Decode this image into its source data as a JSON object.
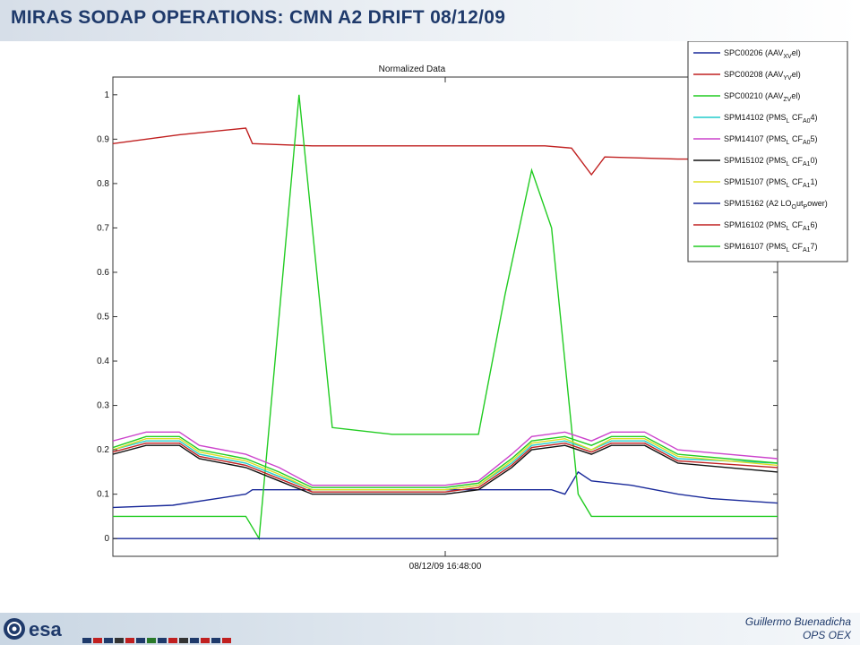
{
  "slide": {
    "title": "MIRAS SODAP OPERATIONS: CMN A2 DRIFT 08/12/09",
    "author_line1": "Guillermo Buenadicha",
    "author_line2": "OPS OEX",
    "logo_text": "esa"
  },
  "chart_data": {
    "type": "line",
    "title": "Normalized Data",
    "xlabel": "08/12/09 16:48:00",
    "ylabel": "",
    "xlim": [
      0,
      1
    ],
    "ylim": [
      -0.04,
      1.04
    ],
    "yticks": [
      "0",
      "0.1",
      "0.2",
      "0.3",
      "0.4",
      "0.5",
      "0.6",
      "0.7",
      "0.8",
      "0.9",
      "1"
    ],
    "grid": false,
    "legend_position": "top-right",
    "series": [
      {
        "name": "SPC00206 (AAV",
        "sub": "XV",
        "tail": "el)",
        "color": "#1a2a9a",
        "points": [
          [
            0,
            0.07
          ],
          [
            0.09,
            0.075
          ],
          [
            0.2,
            0.1
          ],
          [
            0.21,
            0.11
          ],
          [
            0.3,
            0.11
          ],
          [
            0.4,
            0.11
          ],
          [
            0.55,
            0.11
          ],
          [
            0.66,
            0.11
          ],
          [
            0.68,
            0.1
          ],
          [
            0.7,
            0.15
          ],
          [
            0.72,
            0.13
          ],
          [
            0.78,
            0.12
          ],
          [
            0.85,
            0.1
          ],
          [
            0.9,
            0.09
          ],
          [
            1,
            0.08
          ]
        ]
      },
      {
        "name": "SPC00208 (AAV",
        "sub": "YV",
        "tail": "el)",
        "color": "#c02020",
        "points": [
          [
            0,
            0.89
          ],
          [
            0.1,
            0.91
          ],
          [
            0.2,
            0.925
          ],
          [
            0.21,
            0.89
          ],
          [
            0.3,
            0.885
          ],
          [
            0.5,
            0.885
          ],
          [
            0.65,
            0.885
          ],
          [
            0.69,
            0.88
          ],
          [
            0.7,
            0.86
          ],
          [
            0.72,
            0.82
          ],
          [
            0.74,
            0.86
          ],
          [
            0.85,
            0.855
          ],
          [
            1,
            0.855
          ]
        ]
      },
      {
        "name": "SPC00210 (AAV",
        "sub": "ZV",
        "tail": "el)",
        "color": "#22cc22",
        "points": [
          [
            0,
            0.05
          ],
          [
            0.2,
            0.05
          ],
          [
            0.22,
            0.0
          ],
          [
            0.28,
            1.0
          ],
          [
            0.33,
            0.25
          ],
          [
            0.42,
            0.235
          ],
          [
            0.5,
            0.235
          ],
          [
            0.55,
            0.235
          ],
          [
            0.59,
            0.55
          ],
          [
            0.63,
            0.83
          ],
          [
            0.66,
            0.7
          ],
          [
            0.7,
            0.1
          ],
          [
            0.72,
            0.05
          ],
          [
            1,
            0.05
          ]
        ]
      },
      {
        "name": "SPM14102 (PMS",
        "sub": "L",
        "tail": " CF",
        "sub2": "A0",
        "tail2": "4)",
        "color": "#22cccc",
        "points": [
          [
            0,
            0.2
          ],
          [
            0.05,
            0.22
          ],
          [
            0.1,
            0.22
          ],
          [
            0.13,
            0.19
          ],
          [
            0.2,
            0.17
          ],
          [
            0.25,
            0.14
          ],
          [
            0.3,
            0.11
          ],
          [
            0.5,
            0.11
          ],
          [
            0.55,
            0.12
          ],
          [
            0.6,
            0.17
          ],
          [
            0.63,
            0.21
          ],
          [
            0.68,
            0.22
          ],
          [
            0.72,
            0.2
          ],
          [
            0.75,
            0.22
          ],
          [
            0.8,
            0.22
          ],
          [
            0.85,
            0.18
          ],
          [
            1,
            0.17
          ]
        ]
      },
      {
        "name": "SPM14107 (PMS",
        "sub": "L",
        "tail": " CF",
        "sub2": "A0",
        "tail2": "5)",
        "color": "#cc44cc",
        "points": [
          [
            0,
            0.22
          ],
          [
            0.05,
            0.24
          ],
          [
            0.1,
            0.24
          ],
          [
            0.13,
            0.21
          ],
          [
            0.2,
            0.19
          ],
          [
            0.25,
            0.16
          ],
          [
            0.3,
            0.12
          ],
          [
            0.5,
            0.12
          ],
          [
            0.55,
            0.13
          ],
          [
            0.6,
            0.19
          ],
          [
            0.63,
            0.23
          ],
          [
            0.68,
            0.24
          ],
          [
            0.72,
            0.22
          ],
          [
            0.75,
            0.24
          ],
          [
            0.8,
            0.24
          ],
          [
            0.85,
            0.2
          ],
          [
            1,
            0.18
          ]
        ]
      },
      {
        "name": "SPM15102 (PMS",
        "sub": "L",
        "tail": " CF",
        "sub2": "A1",
        "tail2": "0)",
        "color": "#111111",
        "points": [
          [
            0,
            0.19
          ],
          [
            0.05,
            0.21
          ],
          [
            0.1,
            0.21
          ],
          [
            0.13,
            0.18
          ],
          [
            0.2,
            0.16
          ],
          [
            0.25,
            0.13
          ],
          [
            0.3,
            0.1
          ],
          [
            0.5,
            0.1
          ],
          [
            0.55,
            0.11
          ],
          [
            0.6,
            0.16
          ],
          [
            0.63,
            0.2
          ],
          [
            0.68,
            0.21
          ],
          [
            0.72,
            0.19
          ],
          [
            0.75,
            0.21
          ],
          [
            0.8,
            0.21
          ],
          [
            0.85,
            0.17
          ],
          [
            1,
            0.15
          ]
        ]
      },
      {
        "name": "SPM15107 (PMS",
        "sub": "L",
        "tail": " CF",
        "sub2": "A1",
        "tail2": "1)",
        "color": "#dddd22",
        "points": [
          [
            0,
            0.2
          ],
          [
            0.05,
            0.225
          ],
          [
            0.1,
            0.225
          ],
          [
            0.13,
            0.195
          ],
          [
            0.2,
            0.175
          ],
          [
            0.25,
            0.145
          ],
          [
            0.3,
            0.11
          ],
          [
            0.5,
            0.11
          ],
          [
            0.55,
            0.12
          ],
          [
            0.6,
            0.175
          ],
          [
            0.63,
            0.215
          ],
          [
            0.68,
            0.225
          ],
          [
            0.72,
            0.2
          ],
          [
            0.75,
            0.225
          ],
          [
            0.8,
            0.225
          ],
          [
            0.85,
            0.185
          ],
          [
            1,
            0.165
          ]
        ]
      },
      {
        "name": "SPM15162 (A2 LO",
        "sub": "O",
        "tail": "ut",
        "sub2": "P",
        "tail2": "ower)",
        "color": "#1a2a9a",
        "points": [
          [
            0,
            0.0
          ],
          [
            0.2,
            0.0
          ],
          [
            0.3,
            0.0
          ],
          [
            0.5,
            0.0
          ],
          [
            0.7,
            0.0
          ],
          [
            1,
            0.0
          ]
        ]
      },
      {
        "name": "SPM16102 (PMS",
        "sub": "L",
        "tail": " CF",
        "sub2": "A1",
        "tail2": "6)",
        "color": "#c02020",
        "points": [
          [
            0,
            0.195
          ],
          [
            0.05,
            0.215
          ],
          [
            0.1,
            0.215
          ],
          [
            0.13,
            0.185
          ],
          [
            0.2,
            0.165
          ],
          [
            0.25,
            0.135
          ],
          [
            0.3,
            0.105
          ],
          [
            0.5,
            0.105
          ],
          [
            0.55,
            0.115
          ],
          [
            0.6,
            0.165
          ],
          [
            0.63,
            0.205
          ],
          [
            0.68,
            0.215
          ],
          [
            0.72,
            0.195
          ],
          [
            0.75,
            0.215
          ],
          [
            0.8,
            0.215
          ],
          [
            0.85,
            0.175
          ],
          [
            1,
            0.16
          ]
        ]
      },
      {
        "name": "SPM16107 (PMS",
        "sub": "L",
        "tail": " CF",
        "sub2": "A1",
        "tail2": "7)",
        "color": "#22cc22",
        "points": [
          [
            0,
            0.205
          ],
          [
            0.05,
            0.23
          ],
          [
            0.1,
            0.23
          ],
          [
            0.13,
            0.2
          ],
          [
            0.2,
            0.18
          ],
          [
            0.25,
            0.15
          ],
          [
            0.3,
            0.115
          ],
          [
            0.5,
            0.115
          ],
          [
            0.55,
            0.125
          ],
          [
            0.6,
            0.18
          ],
          [
            0.63,
            0.22
          ],
          [
            0.68,
            0.23
          ],
          [
            0.72,
            0.21
          ],
          [
            0.75,
            0.23
          ],
          [
            0.8,
            0.23
          ],
          [
            0.85,
            0.19
          ],
          [
            1,
            0.17
          ]
        ]
      }
    ]
  }
}
